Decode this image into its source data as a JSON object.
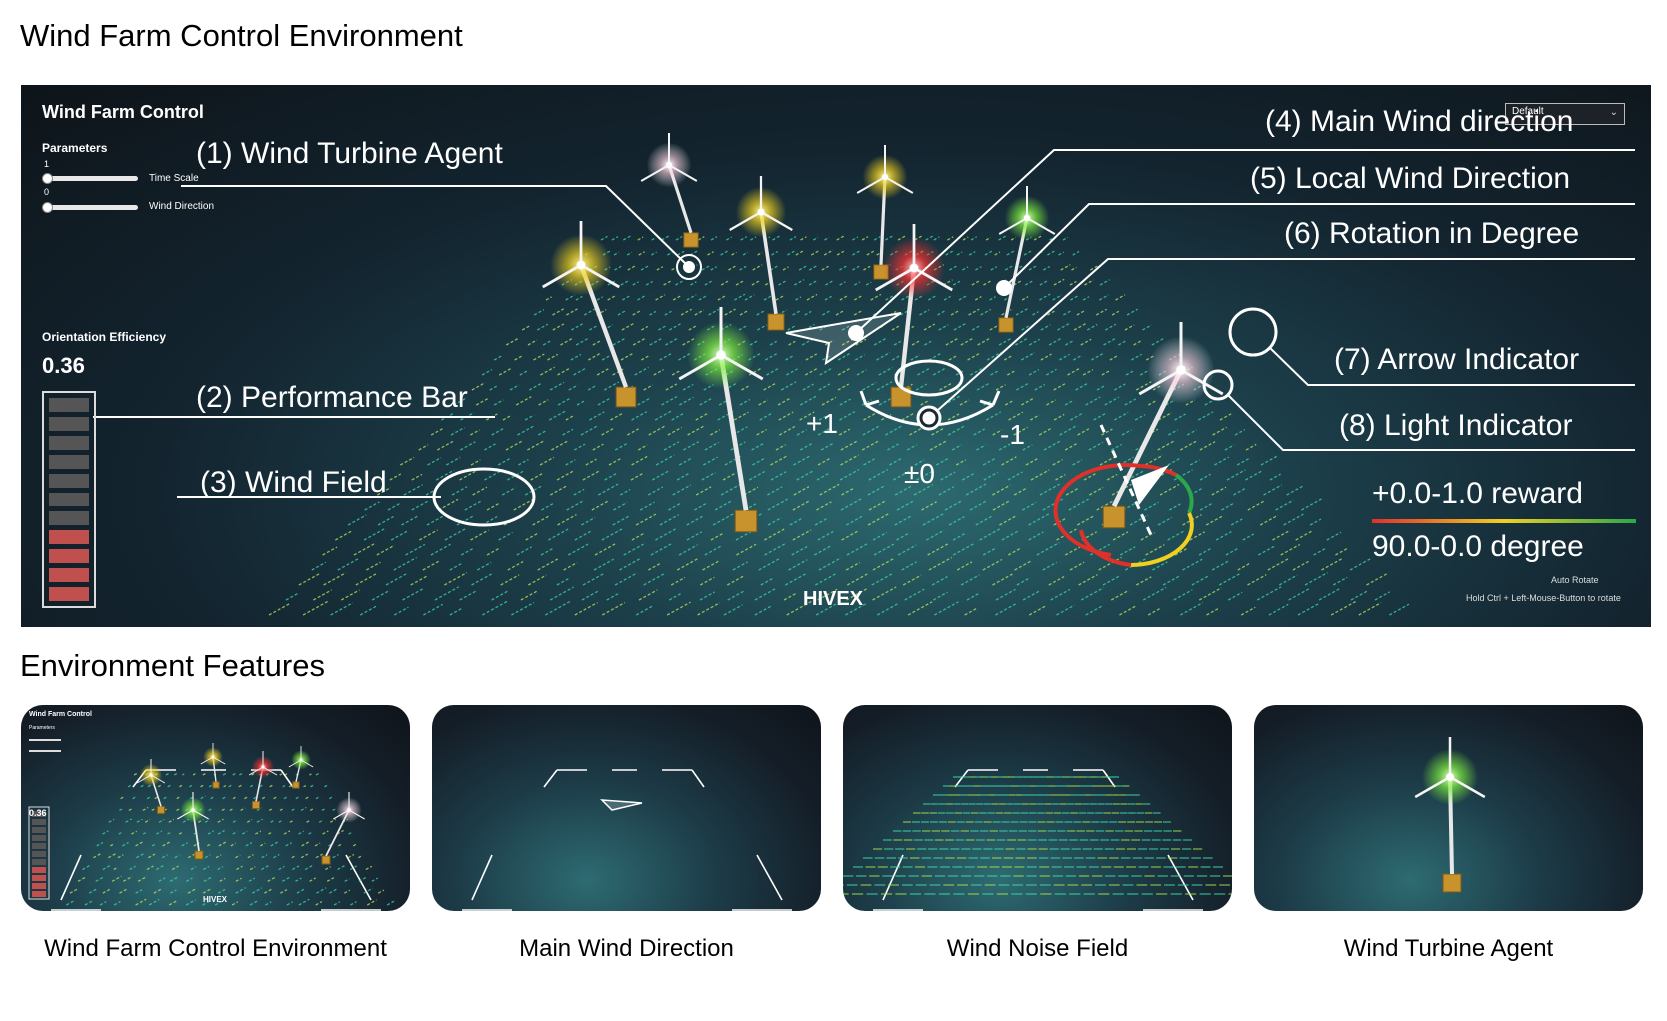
{
  "page": {
    "title": "Wind Farm Control Environment",
    "features_title": "Environment Features"
  },
  "main": {
    "app_title": "Wind Farm Control",
    "parameters_label": "Parameters",
    "time_scale": {
      "label": "Time Scale",
      "value": "1"
    },
    "wind_direction": {
      "label": "Wind Direction",
      "value": "0"
    },
    "efficiency_label": "Orientation Efficiency",
    "efficiency_value": "0.36",
    "performance_segments": {
      "total": 11,
      "filled_red": 4
    },
    "preset": "Default",
    "logo": "HIVEX",
    "hint": "Hold Ctrl + Left-Mouse-Button to rotate",
    "camera_label": "Auto Rotate",
    "annotations": {
      "a1": "(1) Wind Turbine Agent",
      "a2": "(2) Performance Bar",
      "a3": "(3) Wind Field",
      "a4": "(4) Main Wind direction",
      "a5": "(5) Local Wind Direction",
      "a6": "(6) Rotation in Degree",
      "a7": "(7) Arrow Indicator",
      "a8": "(8) Light Indicator"
    },
    "rotation_labels": {
      "plus": "+1",
      "minus": "-1",
      "zero": "±0"
    },
    "reward_legend": "+0.0-1.0 reward",
    "degree_legend": "90.0-0.0 degree",
    "colors": {
      "red": "#e0302a",
      "yellow": "#f0d020",
      "green": "#2aa84a",
      "wind_field": "#3fd8a8"
    }
  },
  "features": [
    {
      "caption": "Wind Farm Control Environment",
      "mini_title": "Wind Farm Control",
      "mini_params": "Parameters",
      "mini_eff_value": "0.36",
      "mini_logo": "HIVEX"
    },
    {
      "caption": "Main Wind Direction"
    },
    {
      "caption": "Wind Noise Field"
    },
    {
      "caption": "Wind Turbine Agent"
    }
  ]
}
